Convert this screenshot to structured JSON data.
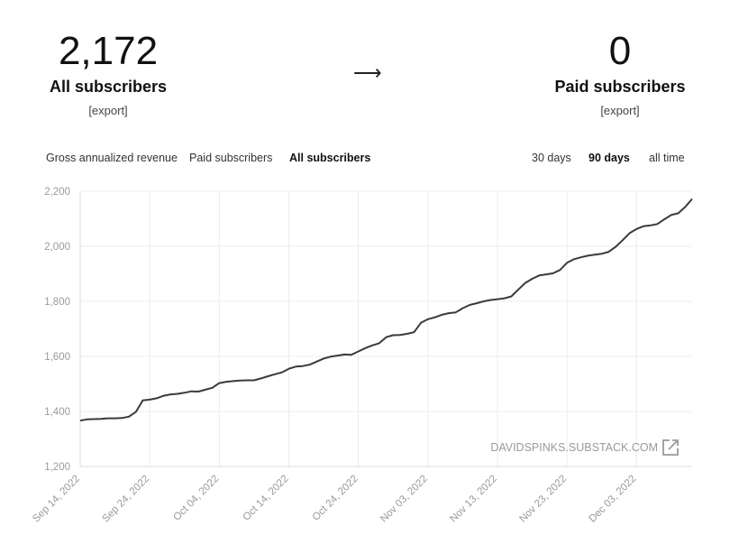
{
  "stats": {
    "all": {
      "value": "2,172",
      "label": "All subscribers",
      "export": "[export]"
    },
    "arrow": "⟶",
    "paid": {
      "value": "0",
      "label": "Paid subscribers",
      "export": "[export]"
    }
  },
  "metric_tabs": [
    {
      "label": "Gross annualized revenue",
      "active": false
    },
    {
      "label": "Paid subscribers",
      "active": false
    },
    {
      "label": "All subscribers",
      "active": true
    }
  ],
  "range_tabs": [
    {
      "label": "30 days",
      "active": false
    },
    {
      "label": "90 days",
      "active": true
    },
    {
      "label": "all time",
      "active": false
    }
  ],
  "watermark": {
    "text": "DAVIDSPINKS.SUBSTACK.COM",
    "icon": "external-link-icon"
  },
  "colors": {
    "line": "#3a3a3a",
    "grid": "#ececec",
    "axis_text": "#9a9a9a"
  },
  "chart_data": {
    "type": "line",
    "ylim": [
      1200,
      2200
    ],
    "yticks": [
      1200,
      1400,
      1600,
      1800,
      2000,
      2200
    ],
    "ytick_labels": [
      "1,200",
      "1,400",
      "1,600",
      "1,800",
      "2,000",
      "2,200"
    ],
    "xlim": [
      "2022-09-14",
      "2022-12-11"
    ],
    "xticks": [
      "2022-09-14",
      "2022-09-24",
      "2022-10-04",
      "2022-10-14",
      "2022-10-24",
      "2022-11-03",
      "2022-11-13",
      "2022-11-23",
      "2022-12-03"
    ],
    "xtick_labels": [
      "Sep 14, 2022",
      "Sep 24, 2022",
      "Oct 04, 2022",
      "Oct 14, 2022",
      "Oct 24, 2022",
      "Nov 03, 2022",
      "Nov 13, 2022",
      "Nov 23, 2022",
      "Dec 03, 2022"
    ],
    "grid": true,
    "series": [
      {
        "x": [
          "2022-09-14",
          "2022-09-15",
          "2022-09-16",
          "2022-09-17",
          "2022-09-18",
          "2022-09-19",
          "2022-09-20",
          "2022-09-21",
          "2022-09-22",
          "2022-09-23",
          "2022-09-24",
          "2022-09-25",
          "2022-09-26",
          "2022-09-27",
          "2022-09-28",
          "2022-09-29",
          "2022-09-30",
          "2022-10-01",
          "2022-10-02",
          "2022-10-03",
          "2022-10-04",
          "2022-10-05",
          "2022-10-06",
          "2022-10-07",
          "2022-10-08",
          "2022-10-09",
          "2022-10-10",
          "2022-10-11",
          "2022-10-12",
          "2022-10-13",
          "2022-10-14",
          "2022-10-15",
          "2022-10-16",
          "2022-10-17",
          "2022-10-18",
          "2022-10-19",
          "2022-10-20",
          "2022-10-21",
          "2022-10-22",
          "2022-10-23",
          "2022-10-24",
          "2022-10-25",
          "2022-10-26",
          "2022-10-27",
          "2022-10-28",
          "2022-10-29",
          "2022-10-30",
          "2022-10-31",
          "2022-11-01",
          "2022-11-02",
          "2022-11-03",
          "2022-11-04",
          "2022-11-05",
          "2022-11-06",
          "2022-11-07",
          "2022-11-08",
          "2022-11-09",
          "2022-11-10",
          "2022-11-11",
          "2022-11-12",
          "2022-11-13",
          "2022-11-14",
          "2022-11-15",
          "2022-11-16",
          "2022-11-17",
          "2022-11-18",
          "2022-11-19",
          "2022-11-20",
          "2022-11-21",
          "2022-11-22",
          "2022-11-23",
          "2022-11-24",
          "2022-11-25",
          "2022-11-26",
          "2022-11-27",
          "2022-11-28",
          "2022-11-29",
          "2022-11-30",
          "2022-12-01",
          "2022-12-02",
          "2022-12-03",
          "2022-12-04",
          "2022-12-05",
          "2022-12-06",
          "2022-12-07",
          "2022-12-08",
          "2022-12-09",
          "2022-12-10",
          "2022-12-11"
        ],
        "values": [
          1367,
          1371,
          1372,
          1373,
          1375,
          1375,
          1376,
          1381,
          1398,
          1440,
          1443,
          1448,
          1457,
          1462,
          1464,
          1468,
          1473,
          1472,
          1479,
          1486,
          1503,
          1508,
          1510,
          1512,
          1513,
          1513,
          1520,
          1528,
          1535,
          1542,
          1555,
          1563,
          1565,
          1570,
          1581,
          1592,
          1599,
          1603,
          1607,
          1606,
          1618,
          1630,
          1640,
          1648,
          1670,
          1677,
          1678,
          1682,
          1688,
          1722,
          1735,
          1742,
          1751,
          1757,
          1760,
          1775,
          1787,
          1793,
          1800,
          1805,
          1808,
          1811,
          1818,
          1843,
          1867,
          1882,
          1894,
          1898,
          1902,
          1914,
          1940,
          1953,
          1960,
          1966,
          1970,
          1973,
          1980,
          1998,
          2022,
          2048,
          2063,
          2073,
          2076,
          2081,
          2098,
          2114,
          2120,
          2143,
          2172
        ]
      }
    ]
  }
}
